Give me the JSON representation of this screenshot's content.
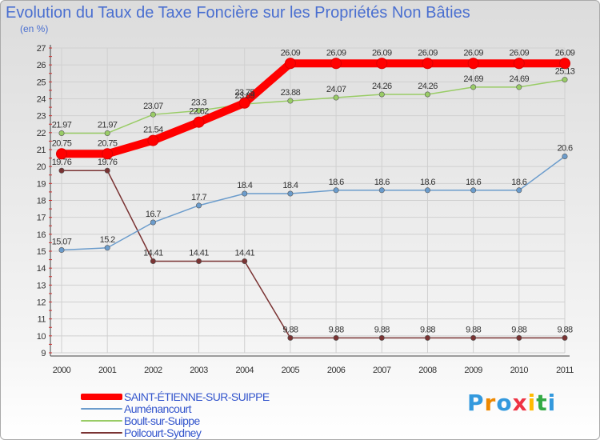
{
  "chart_data": {
    "type": "line",
    "title": "Evolution du Taux de Taxe Foncière sur les Propriétés Non Bâties",
    "ylabel": "(en %)",
    "xlabel": "",
    "categories": [
      "2000",
      "2001",
      "2002",
      "2003",
      "2004",
      "2005",
      "2006",
      "2007",
      "2008",
      "2009",
      "2010",
      "2011"
    ],
    "ylim": [
      9,
      27
    ],
    "yticks": [
      9,
      10,
      11,
      12,
      13,
      14,
      15,
      16,
      17,
      18,
      19,
      20,
      21,
      22,
      23,
      24,
      25,
      26,
      27
    ],
    "grid": true,
    "legend_position": "bottom-left",
    "series": [
      {
        "name": "SAINT-ÉTIENNE-SUR-SUIPPE",
        "color": "#ff0000",
        "values": [
          20.75,
          20.75,
          21.54,
          22.62,
          23.75,
          26.09,
          26.09,
          26.09,
          26.09,
          26.09,
          26.09,
          26.09
        ],
        "labels": [
          "20.75",
          "20.75",
          "21.54",
          "22.62",
          "23.75",
          "26.09",
          "26.09",
          "26.09",
          "26.09",
          "26.09",
          "26.09",
          "26.09"
        ]
      },
      {
        "name": "Auménancourt",
        "color": "#6b9ccc",
        "values": [
          15.07,
          15.2,
          16.7,
          17.7,
          18.4,
          18.4,
          18.6,
          18.6,
          18.6,
          18.6,
          18.6,
          20.6
        ],
        "labels": [
          "15.07",
          "15.2",
          "16.7",
          "17.7",
          "18.4",
          "18.4",
          "18.6",
          "18.6",
          "18.6",
          "18.6",
          "18.6",
          "20.6"
        ]
      },
      {
        "name": "Boult-sur-Suippe",
        "color": "#99cc66",
        "values": [
          21.97,
          21.97,
          23.07,
          23.3,
          23.69,
          23.88,
          24.07,
          24.26,
          24.26,
          24.69,
          24.69,
          25.13
        ],
        "labels": [
          "21.97",
          "21.97",
          "23.07",
          "23.3",
          "23.69",
          "23.88",
          "24.07",
          "24.26",
          "24.26",
          "24.69",
          "24.69",
          "25.13"
        ]
      },
      {
        "name": "Poilcourt-Sydney",
        "color": "#7a3333",
        "values": [
          19.76,
          19.76,
          14.41,
          14.41,
          14.41,
          9.88,
          9.88,
          9.88,
          9.88,
          9.88,
          9.88,
          9.88
        ],
        "labels": [
          "19.76",
          "19.76",
          "14.41",
          "14.41",
          "14.41",
          "9.88",
          "9.88",
          "9.88",
          "9.88",
          "9.88",
          "9.88",
          "9.88"
        ]
      }
    ]
  },
  "logo": {
    "letters": [
      "P",
      "r",
      "o",
      "x",
      "i",
      "t",
      "i"
    ],
    "colors": [
      "#3399dd",
      "#ee8800",
      "#3399dd",
      "#ee3344",
      "#ffbb00",
      "#33aa44",
      "#3399dd"
    ]
  }
}
